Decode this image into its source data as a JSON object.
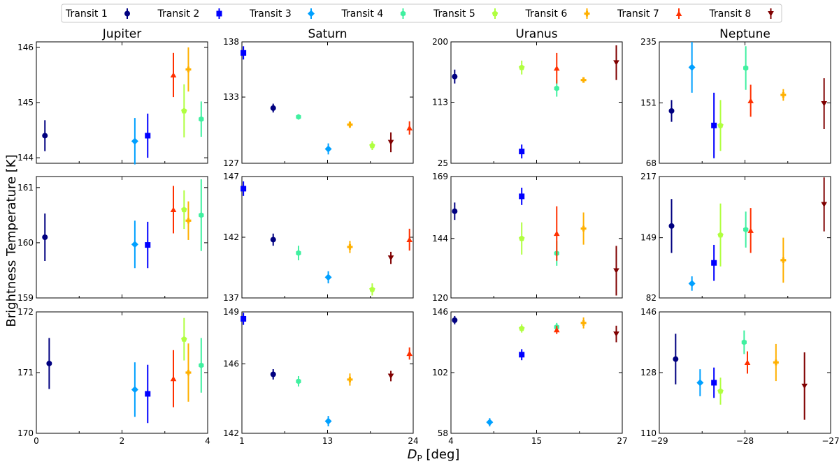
{
  "figure": {
    "ylabel": "Brightness Temperature [K]",
    "xlabel_main": "D",
    "xlabel_sub": "P",
    "xlabel_unit": " [deg]"
  },
  "legend": [
    {
      "label": "Transit 1",
      "color": "#000080",
      "marker": "circle"
    },
    {
      "label": "Transit 2",
      "color": "#0000ff",
      "marker": "square"
    },
    {
      "label": "Transit 3",
      "color": "#00a0ff",
      "marker": "diamond"
    },
    {
      "label": "Transit 4",
      "color": "#40f0a0",
      "marker": "hexagon"
    },
    {
      "label": "Transit 5",
      "color": "#b0ff40",
      "marker": "pentagon"
    },
    {
      "label": "Transit 6",
      "color": "#ffb000",
      "marker": "plus"
    },
    {
      "label": "Transit 7",
      "color": "#ff3000",
      "marker": "triangle-up"
    },
    {
      "label": "Transit 8",
      "color": "#800000",
      "marker": "triangle-down"
    }
  ],
  "columns": [
    {
      "title": "Jupiter",
      "xlim": [
        0,
        4
      ],
      "xticks": [
        "0",
        "2",
        "4"
      ]
    },
    {
      "title": "Saturn",
      "xlim": [
        1,
        24
      ],
      "xticks": [
        "1",
        "13",
        "24"
      ]
    },
    {
      "title": "Uranus",
      "xlim": [
        4,
        27
      ],
      "xticks": [
        "4",
        "15",
        "27"
      ]
    },
    {
      "title": "Neptune",
      "xlim": [
        -29.1,
        -27
      ],
      "xticks": [
        "−29",
        "−28",
        "−27"
      ]
    }
  ],
  "chart_data": [
    {
      "type": "scatter",
      "planet": "Jupiter",
      "row": 1,
      "ylim": [
        143.9,
        146.1
      ],
      "yticks": [
        "144",
        "145",
        "146"
      ],
      "points": [
        {
          "transit": 1,
          "x": 0.2,
          "y": 144.4,
          "err": 0.28
        },
        {
          "transit": 2,
          "x": 2.6,
          "y": 144.4,
          "err": 0.4
        },
        {
          "transit": 3,
          "x": 2.3,
          "y": 144.3,
          "err": 0.42
        },
        {
          "transit": 4,
          "x": 3.85,
          "y": 144.7,
          "err": 0.32
        },
        {
          "transit": 5,
          "x": 3.45,
          "y": 144.85,
          "err": 0.48
        },
        {
          "transit": 6,
          "x": 3.55,
          "y": 145.6,
          "err": 0.4
        },
        {
          "transit": 7,
          "x": 3.2,
          "y": 145.5,
          "err": 0.4
        }
      ]
    },
    {
      "type": "scatter",
      "planet": "Saturn",
      "row": 1,
      "ylim": [
        127,
        138
      ],
      "yticks": [
        "127",
        "133",
        "138"
      ],
      "points": [
        {
          "transit": 2,
          "x": 1.2,
          "y": 137,
          "err": 0.6
        },
        {
          "transit": 1,
          "x": 5.2,
          "y": 132,
          "err": 0.4
        },
        {
          "transit": 4,
          "x": 8.6,
          "y": 131.2,
          "err": 0.2
        },
        {
          "transit": 3,
          "x": 12.6,
          "y": 128.3,
          "err": 0.5
        },
        {
          "transit": 6,
          "x": 15.5,
          "y": 130.5,
          "err": 0.3
        },
        {
          "transit": 5,
          "x": 18.5,
          "y": 128.6,
          "err": 0.4
        },
        {
          "transit": 8,
          "x": 21,
          "y": 128.9,
          "err": 0.9
        },
        {
          "transit": 7,
          "x": 23.5,
          "y": 130.2,
          "err": 0.6
        }
      ]
    },
    {
      "type": "scatter",
      "planet": "Uranus",
      "row": 1,
      "ylim": [
        25,
        200
      ],
      "yticks": [
        "25",
        "113",
        "200"
      ],
      "points": [
        {
          "transit": 1,
          "x": 4.5,
          "y": 150,
          "err": 10
        },
        {
          "transit": 2,
          "x": 13.5,
          "y": 42,
          "err": 10
        },
        {
          "transit": 5,
          "x": 13.5,
          "y": 163,
          "err": 10
        },
        {
          "transit": 4,
          "x": 18.2,
          "y": 133,
          "err": 12
        },
        {
          "transit": 7,
          "x": 18.2,
          "y": 162,
          "err": 22
        },
        {
          "transit": 6,
          "x": 21.8,
          "y": 145,
          "err": 3
        },
        {
          "transit": 8,
          "x": 26.2,
          "y": 170,
          "err": 25
        }
      ]
    },
    {
      "type": "scatter",
      "planet": "Neptune",
      "row": 1,
      "ylim": [
        68,
        235
      ],
      "yticks": [
        "68",
        "151",
        "235"
      ],
      "points": [
        {
          "transit": 1,
          "x": -28.95,
          "y": 140,
          "err": 15
        },
        {
          "transit": 3,
          "x": -28.7,
          "y": 200,
          "err": 35
        },
        {
          "transit": 2,
          "x": -28.43,
          "y": 120,
          "err": 45
        },
        {
          "transit": 5,
          "x": -28.35,
          "y": 120,
          "err": 35
        },
        {
          "transit": 4,
          "x": -28.04,
          "y": 199,
          "err": 30
        },
        {
          "transit": 7,
          "x": -27.98,
          "y": 154,
          "err": 22
        },
        {
          "transit": 6,
          "x": -27.58,
          "y": 162,
          "err": 8
        },
        {
          "transit": 8,
          "x": -27.08,
          "y": 150,
          "err": 35
        }
      ]
    },
    {
      "type": "scatter",
      "planet": "Jupiter",
      "row": 2,
      "ylim": [
        159,
        161.2
      ],
      "yticks": [
        "159",
        "160",
        "161"
      ],
      "points": [
        {
          "transit": 1,
          "x": 0.2,
          "y": 160.1,
          "err": 0.43
        },
        {
          "transit": 3,
          "x": 2.3,
          "y": 159.97,
          "err": 0.43
        },
        {
          "transit": 2,
          "x": 2.6,
          "y": 159.96,
          "err": 0.42
        },
        {
          "transit": 7,
          "x": 3.2,
          "y": 160.6,
          "err": 0.43
        },
        {
          "transit": 5,
          "x": 3.45,
          "y": 160.6,
          "err": 0.35
        },
        {
          "transit": 6,
          "x": 3.55,
          "y": 160.4,
          "err": 0.35
        },
        {
          "transit": 4,
          "x": 3.85,
          "y": 160.5,
          "err": 0.65
        }
      ]
    },
    {
      "type": "scatter",
      "planet": "Saturn",
      "row": 2,
      "ylim": [
        137,
        147
      ],
      "yticks": [
        "137",
        "142",
        "147"
      ],
      "points": [
        {
          "transit": 2,
          "x": 1.2,
          "y": 146,
          "err": 0.6
        },
        {
          "transit": 1,
          "x": 5.2,
          "y": 141.8,
          "err": 0.5
        },
        {
          "transit": 4,
          "x": 8.6,
          "y": 140.7,
          "err": 0.6
        },
        {
          "transit": 3,
          "x": 12.6,
          "y": 138.7,
          "err": 0.5
        },
        {
          "transit": 6,
          "x": 15.5,
          "y": 141.2,
          "err": 0.5
        },
        {
          "transit": 5,
          "x": 18.5,
          "y": 137.7,
          "err": 0.5
        },
        {
          "transit": 8,
          "x": 21,
          "y": 140.3,
          "err": 0.5
        },
        {
          "transit": 7,
          "x": 23.5,
          "y": 141.8,
          "err": 0.9
        }
      ]
    },
    {
      "type": "scatter",
      "planet": "Uranus",
      "row": 2,
      "ylim": [
        120,
        169
      ],
      "yticks": [
        "120",
        "144",
        "169"
      ],
      "points": [
        {
          "transit": 1,
          "x": 4.5,
          "y": 155,
          "err": 3.5
        },
        {
          "transit": 2,
          "x": 13.5,
          "y": 161,
          "err": 3.5
        },
        {
          "transit": 5,
          "x": 13.5,
          "y": 144,
          "err": 6.5
        },
        {
          "transit": 4,
          "x": 18.2,
          "y": 138,
          "err": 5
        },
        {
          "transit": 7,
          "x": 18.2,
          "y": 146,
          "err": 11
        },
        {
          "transit": 6,
          "x": 21.8,
          "y": 148,
          "err": 6.5
        },
        {
          "transit": 8,
          "x": 26.2,
          "y": 131,
          "err": 10
        }
      ]
    },
    {
      "type": "scatter",
      "planet": "Neptune",
      "row": 2,
      "ylim": [
        82,
        217
      ],
      "yticks": [
        "82",
        "149",
        "217"
      ],
      "points": [
        {
          "transit": 1,
          "x": -28.95,
          "y": 162,
          "err": 30
        },
        {
          "transit": 3,
          "x": -28.7,
          "y": 98,
          "err": 8
        },
        {
          "transit": 2,
          "x": -28.43,
          "y": 121,
          "err": 20
        },
        {
          "transit": 5,
          "x": -28.35,
          "y": 152,
          "err": 35
        },
        {
          "transit": 4,
          "x": -28.04,
          "y": 158,
          "err": 20
        },
        {
          "transit": 7,
          "x": -27.98,
          "y": 157,
          "err": 25
        },
        {
          "transit": 6,
          "x": -27.58,
          "y": 124,
          "err": 25
        },
        {
          "transit": 8,
          "x": -27.08,
          "y": 186,
          "err": 30
        }
      ]
    },
    {
      "type": "scatter",
      "planet": "Jupiter",
      "row": 3,
      "ylim": [
        170,
        172
      ],
      "yticks": [
        "170",
        "171",
        "172"
      ],
      "points": [
        {
          "transit": 1,
          "x": 0.3,
          "y": 171.15,
          "err": 0.42
        },
        {
          "transit": 3,
          "x": 2.3,
          "y": 170.72,
          "err": 0.45
        },
        {
          "transit": 2,
          "x": 2.6,
          "y": 170.65,
          "err": 0.48
        },
        {
          "transit": 7,
          "x": 3.2,
          "y": 170.9,
          "err": 0.47
        },
        {
          "transit": 5,
          "x": 3.45,
          "y": 171.55,
          "err": 0.35
        },
        {
          "transit": 6,
          "x": 3.55,
          "y": 171.0,
          "err": 0.48
        },
        {
          "transit": 4,
          "x": 3.85,
          "y": 171.12,
          "err": 0.45
        }
      ]
    },
    {
      "type": "scatter",
      "planet": "Saturn",
      "row": 3,
      "ylim": [
        142,
        149
      ],
      "yticks": [
        "142",
        "146",
        "149"
      ],
      "points": [
        {
          "transit": 2,
          "x": 1.2,
          "y": 148.6,
          "err": 0.35
        },
        {
          "transit": 1,
          "x": 5.2,
          "y": 145.4,
          "err": 0.3
        },
        {
          "transit": 4,
          "x": 8.6,
          "y": 145.0,
          "err": 0.3
        },
        {
          "transit": 3,
          "x": 12.6,
          "y": 142.7,
          "err": 0.3
        },
        {
          "transit": 6,
          "x": 15.5,
          "y": 145.1,
          "err": 0.35
        },
        {
          "transit": 8,
          "x": 21,
          "y": 145.3,
          "err": 0.3
        },
        {
          "transit": 7,
          "x": 23.5,
          "y": 146.6,
          "err": 0.35
        }
      ]
    },
    {
      "type": "scatter",
      "planet": "Uranus",
      "row": 3,
      "ylim": [
        58,
        146
      ],
      "yticks": [
        "58",
        "102",
        "146"
      ],
      "points": [
        {
          "transit": 1,
          "x": 4.5,
          "y": 140,
          "err": 3
        },
        {
          "transit": 3,
          "x": 9.2,
          "y": 66,
          "err": 3
        },
        {
          "transit": 2,
          "x": 13.5,
          "y": 115,
          "err": 4
        },
        {
          "transit": 5,
          "x": 13.5,
          "y": 134,
          "err": 3
        },
        {
          "transit": 4,
          "x": 18.2,
          "y": 135,
          "err": 3
        },
        {
          "transit": 7,
          "x": 18.2,
          "y": 133,
          "err": 3
        },
        {
          "transit": 6,
          "x": 21.8,
          "y": 138,
          "err": 4
        },
        {
          "transit": 8,
          "x": 26.2,
          "y": 130,
          "err": 6
        }
      ]
    },
    {
      "type": "scatter",
      "planet": "Neptune",
      "row": 3,
      "ylim": [
        110,
        146
      ],
      "yticks": [
        "110",
        "128",
        "146"
      ],
      "points": [
        {
          "transit": 1,
          "x": -28.9,
          "y": 132,
          "err": 7.5
        },
        {
          "transit": 3,
          "x": -28.6,
          "y": 125,
          "err": 4
        },
        {
          "transit": 2,
          "x": -28.43,
          "y": 125,
          "err": 4.5
        },
        {
          "transit": 5,
          "x": -28.35,
          "y": 122.5,
          "err": 4
        },
        {
          "transit": 4,
          "x": -28.06,
          "y": 137,
          "err": 3.5
        },
        {
          "transit": 7,
          "x": -28.02,
          "y": 131,
          "err": 3.3
        },
        {
          "transit": 6,
          "x": -27.67,
          "y": 131,
          "err": 5.5
        },
        {
          "transit": 8,
          "x": -27.32,
          "y": 124,
          "err": 10
        }
      ]
    }
  ]
}
